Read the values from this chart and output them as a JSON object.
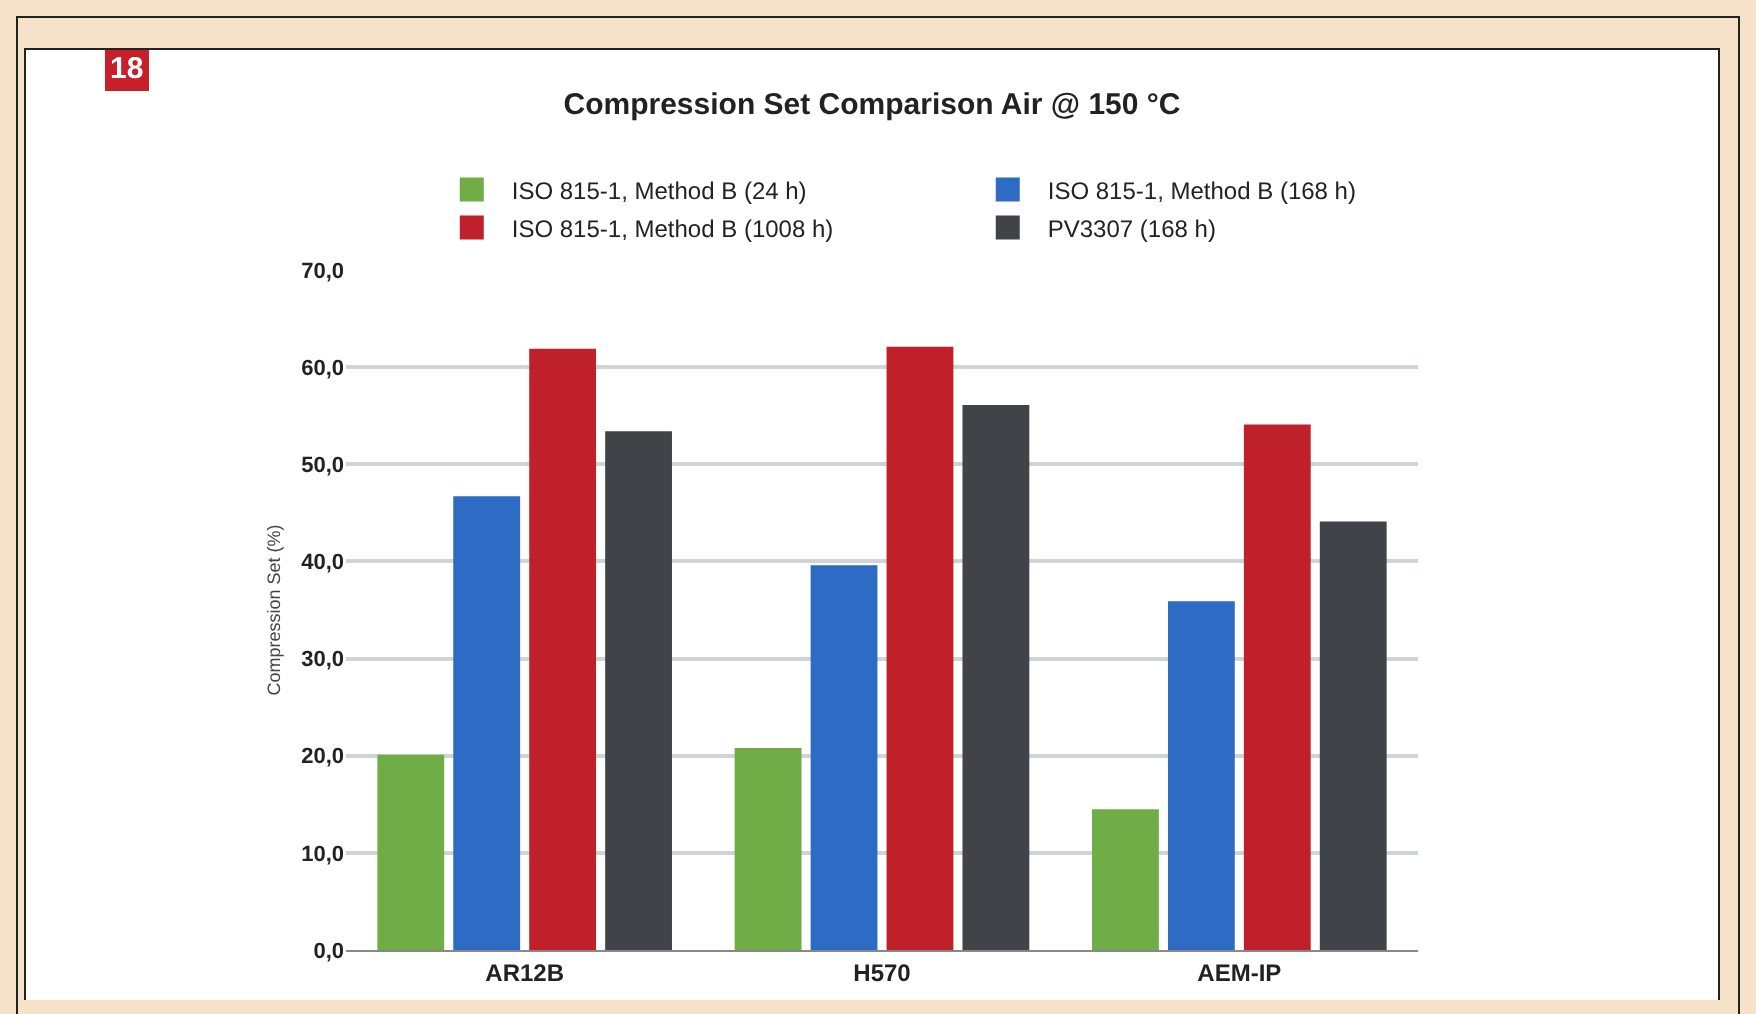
{
  "chart_data": {
    "type": "bar",
    "title": "Compression Set Comparison Air @ 150 °C",
    "ylabel": "Compression Set (%)",
    "annotations": [
      "18"
    ],
    "categories": [
      "AR12B",
      "H570",
      "AEM-IP"
    ],
    "series": [
      {
        "name": "ISO 815-1, Method B (24 h)",
        "color": "#70ad47",
        "values": [
          20.1,
          20.8,
          14.5
        ]
      },
      {
        "name": "ISO 815-1, Method B (168 h)",
        "color": "#2e6bc4",
        "values": [
          46.7,
          39.6,
          35.9
        ]
      },
      {
        "name": "ISO 815-1, Method B (1008 h)",
        "color": "#c0202a",
        "values": [
          61.9,
          62.1,
          54.1
        ]
      },
      {
        "name": "PV3307 (168 h)",
        "color": "#404448",
        "values": [
          53.4,
          56.1,
          44.1
        ]
      }
    ],
    "ylim": [
      0,
      70
    ],
    "yticks": [
      {
        "value": 0,
        "label": "0,0"
      },
      {
        "value": 10,
        "label": "10,0"
      },
      {
        "value": 20,
        "label": "20,0"
      },
      {
        "value": 30,
        "label": "30,0"
      },
      {
        "value": 40,
        "label": "40,0"
      },
      {
        "value": 50,
        "label": "50,0"
      },
      {
        "value": 60,
        "label": "60,0"
      },
      {
        "value": 70,
        "label": "70,0"
      }
    ],
    "grid": "y",
    "legend": "top"
  }
}
